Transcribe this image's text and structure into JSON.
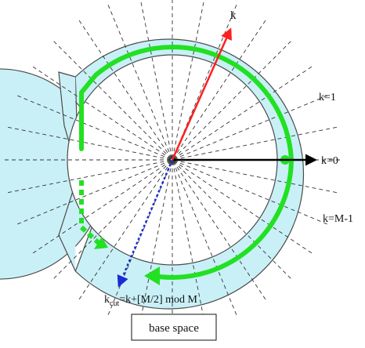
{
  "labels": {
    "k": "k",
    "k_eq_1": "k=1",
    "k_eq_0": "k=0",
    "k_eq_M_minus_1": "k=M-1",
    "kcut_prefix": "k",
    "kcut_subscript": "cut",
    "kcut_formula": "=k+[M/2] mod M"
  },
  "box": {
    "text": "base space"
  },
  "colors": {
    "band_fill": "#c9f0f6",
    "band_stroke": "#4a4a4a",
    "green_path": "#22e022",
    "red_arrow": "#ff2020",
    "black_arrow": "#000000",
    "blue_dotted": "#1a2ad6",
    "spokes": "#333333"
  }
}
